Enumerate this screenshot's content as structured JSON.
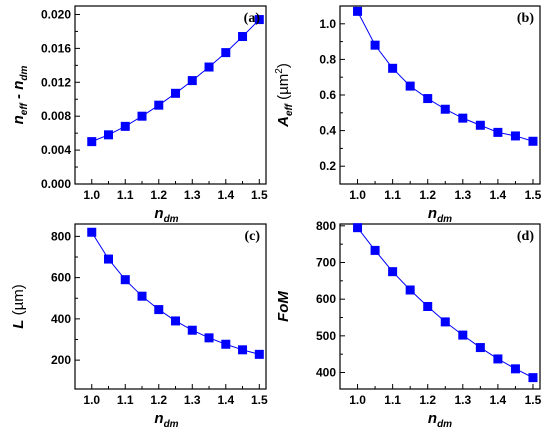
{
  "chart_data": [
    {
      "type": "line",
      "panel_label": "(a)",
      "xlabel": {
        "main": "n",
        "sub": "dm"
      },
      "ylabel": {
        "parts": [
          {
            "t": "n",
            "sub": false
          },
          {
            "t": "eff",
            "sub": true
          },
          {
            "t": " - n",
            "sub": false
          },
          {
            "t": "dm",
            "sub": true
          }
        ]
      },
      "x": [
        1.0,
        1.05,
        1.1,
        1.15,
        1.2,
        1.25,
        1.3,
        1.35,
        1.4,
        1.45,
        1.5
      ],
      "y": [
        0.005,
        0.0058,
        0.0068,
        0.008,
        0.0093,
        0.0107,
        0.0122,
        0.0138,
        0.0155,
        0.0174,
        0.0194
      ],
      "xlim": [
        0.95,
        1.52
      ],
      "ylim": [
        0.0,
        0.021
      ],
      "xticks": [
        "1.0",
        "1.1",
        "1.2",
        "1.3",
        "1.4",
        "1.5"
      ],
      "yticks": [
        "0.000",
        "0.004",
        "0.008",
        "0.012",
        "0.016",
        "0.020"
      ],
      "marker": "square",
      "color": "#0000ff"
    },
    {
      "type": "line",
      "panel_label": "(b)",
      "xlabel": {
        "main": "n",
        "sub": "dm"
      },
      "ylabel": {
        "parts": [
          {
            "t": "A",
            "sub": false
          },
          {
            "t": "eff",
            "sub": true
          },
          {
            "t": " (µm",
            "sub": false,
            "norm": true
          },
          {
            "t": "2",
            "sup": true,
            "norm": true
          },
          {
            "t": ")",
            "sub": false,
            "norm": true
          }
        ]
      },
      "x": [
        1.0,
        1.05,
        1.1,
        1.15,
        1.2,
        1.25,
        1.3,
        1.35,
        1.4,
        1.45,
        1.5
      ],
      "y": [
        1.07,
        0.88,
        0.75,
        0.65,
        0.58,
        0.52,
        0.47,
        0.43,
        0.39,
        0.37,
        0.34
      ],
      "xlim": [
        0.95,
        1.52
      ],
      "ylim": [
        0.1,
        1.1
      ],
      "xticks": [
        "1.0",
        "1.1",
        "1.2",
        "1.3",
        "1.4",
        "1.5"
      ],
      "yticks": [
        "0.2",
        "0.4",
        "0.6",
        "0.8",
        "1.0"
      ],
      "marker": "square",
      "color": "#0000ff"
    },
    {
      "type": "line",
      "panel_label": "(c)",
      "xlabel": {
        "main": "n",
        "sub": "dm"
      },
      "ylabel": {
        "parts": [
          {
            "t": "L",
            "sub": false
          },
          {
            "t": " (µm)",
            "sub": false,
            "norm": true
          }
        ]
      },
      "x": [
        1.0,
        1.05,
        1.1,
        1.15,
        1.2,
        1.25,
        1.3,
        1.35,
        1.4,
        1.45,
        1.5
      ],
      "y": [
        820,
        690,
        590,
        510,
        445,
        390,
        345,
        308,
        277,
        250,
        228
      ],
      "xlim": [
        0.95,
        1.52
      ],
      "ylim": [
        60,
        860
      ],
      "xticks": [
        "1.0",
        "1.1",
        "1.2",
        "1.3",
        "1.4",
        "1.5"
      ],
      "yticks": [
        "200",
        "400",
        "600",
        "800"
      ],
      "marker": "square",
      "color": "#0000ff"
    },
    {
      "type": "line",
      "panel_label": "(d)",
      "xlabel": {
        "main": "n",
        "sub": "dm"
      },
      "ylabel": {
        "parts": [
          {
            "t": "FoM",
            "sub": false
          }
        ]
      },
      "x": [
        1.0,
        1.05,
        1.1,
        1.15,
        1.2,
        1.25,
        1.3,
        1.35,
        1.4,
        1.45,
        1.5
      ],
      "y": [
        795,
        733,
        675,
        625,
        580,
        538,
        502,
        468,
        437,
        410,
        386
      ],
      "xlim": [
        0.95,
        1.52
      ],
      "ylim": [
        355,
        805
      ],
      "xticks": [
        "1.0",
        "1.1",
        "1.2",
        "1.3",
        "1.4",
        "1.5"
      ],
      "yticks": [
        "400",
        "500",
        "600",
        "700",
        "800"
      ],
      "marker": "square",
      "color": "#0000ff"
    }
  ]
}
